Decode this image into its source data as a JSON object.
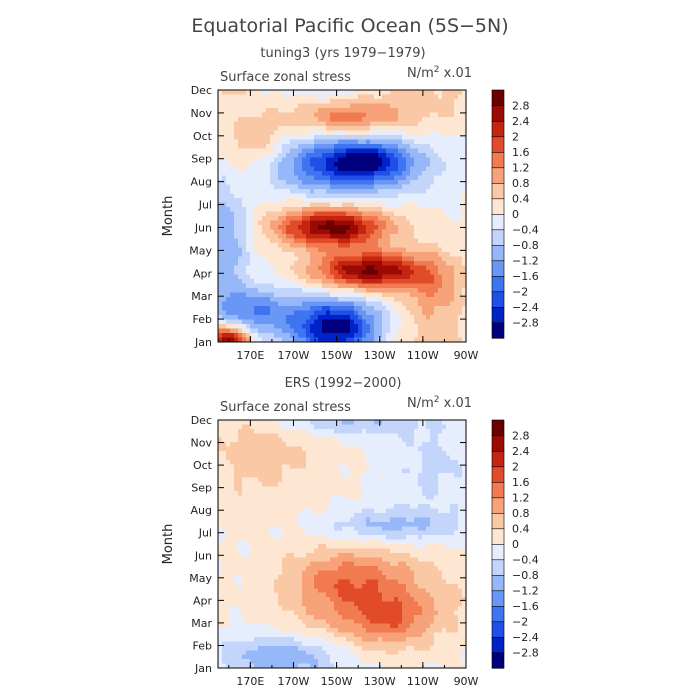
{
  "figure": {
    "title": "Equatorial Pacific Ocean (5S−5N)"
  },
  "colorbar": {
    "levels": [
      -2.8,
      -2.4,
      -2.0,
      -1.6,
      -1.2,
      -0.8,
      -0.4,
      0,
      0.4,
      0.8,
      1.2,
      1.6,
      2.0,
      2.4,
      2.8
    ],
    "tick_labels": [
      "−2.8",
      "−2.4",
      "−2",
      "−1.6",
      "−1.2",
      "−0.8",
      "−0.4",
      "0",
      "0.4",
      "0.8",
      "1.2",
      "1.6",
      "2",
      "2.4",
      "2.8"
    ],
    "colors": [
      "#00007f",
      "#0022c8",
      "#1f4fe6",
      "#3f74f0",
      "#6a97f5",
      "#96b8f8",
      "#c3d5fb",
      "#e6eefd",
      "#fde6d2",
      "#fbc8a5",
      "#f8a27a",
      "#f27a50",
      "#e14b28",
      "#c42410",
      "#9b0a04",
      "#6b0000"
    ]
  },
  "chart_data": [
    {
      "type": "heatmap",
      "subtitle": "tuning3 (yrs 1979−1979)",
      "variable_label": "Surface zonal stress",
      "units_label": "N/m² x.01",
      "units_main": "N/m",
      "units_sup": "2",
      "units_suffix": " x.01",
      "ylabel": "Month",
      "xticks": [
        "170E",
        "170W",
        "150W",
        "130W",
        "110W",
        "90W"
      ],
      "xtick_lon": [
        170,
        190,
        210,
        230,
        250,
        270
      ],
      "xlim": [
        155,
        270
      ],
      "months": [
        "Jan",
        "Feb",
        "Mar",
        "Apr",
        "May",
        "Jun",
        "Jul",
        "Aug",
        "Sep",
        "Oct",
        "Nov",
        "Dec"
      ],
      "features": [
        {
          "lon": 160,
          "mon": 0.0,
          "amp": 3.2,
          "slon": 7,
          "smon": 0.55
        },
        {
          "lon": 210,
          "mon": 0.6,
          "amp": -3.1,
          "slon": 14,
          "smon": 0.9
        },
        {
          "lon": 170,
          "mon": 1.3,
          "amp": -1.6,
          "slon": 16,
          "smon": 0.8
        },
        {
          "lon": 225,
          "mon": 3.1,
          "amp": 2.9,
          "slon": 18,
          "smon": 0.6
        },
        {
          "lon": 255,
          "mon": 2.2,
          "amp": 1.0,
          "slon": 10,
          "smon": 1.2
        },
        {
          "lon": 208,
          "mon": 5.0,
          "amp": 3.0,
          "slon": 18,
          "smon": 0.6
        },
        {
          "lon": 158,
          "mon": 4.5,
          "amp": -1.2,
          "slon": 8,
          "smon": 1.6
        },
        {
          "lon": 215,
          "mon": 7.7,
          "amp": -2.4,
          "slon": 24,
          "smon": 0.85
        },
        {
          "lon": 225,
          "mon": 8.0,
          "amp": -1.2,
          "slon": 12,
          "smon": 0.5
        },
        {
          "lon": 215,
          "mon": 9.8,
          "amp": 1.3,
          "slon": 18,
          "smon": 0.55
        },
        {
          "lon": 172,
          "mon": 8.7,
          "amp": 0.8,
          "slon": 10,
          "smon": 1.0
        },
        {
          "lon": 250,
          "mon": 11.0,
          "amp": 0.5,
          "slon": 25,
          "smon": 1.2
        }
      ]
    },
    {
      "type": "heatmap",
      "subtitle": "ERS (1992−2000)",
      "variable_label": "Surface zonal stress",
      "units_label": "N/m² x.01",
      "units_main": "N/m",
      "units_sup": "2",
      "units_suffix": " x.01",
      "ylabel": "Month",
      "xticks": [
        "170E",
        "170W",
        "150W",
        "130W",
        "110W",
        "90W"
      ],
      "xtick_lon": [
        170,
        190,
        210,
        230,
        250,
        270
      ],
      "xlim": [
        155,
        270
      ],
      "months": [
        "Jan",
        "Feb",
        "Mar",
        "Apr",
        "May",
        "Jun",
        "Jul",
        "Aug",
        "Sep",
        "Oct",
        "Nov",
        "Dec"
      ],
      "features": [
        {
          "lon": 225,
          "mon": 3.0,
          "amp": 1.3,
          "slon": 26,
          "smon": 1.6
        },
        {
          "lon": 212,
          "mon": 4.0,
          "amp": 0.6,
          "slon": 16,
          "smon": 0.8
        },
        {
          "lon": 236,
          "mon": 2.2,
          "amp": 0.7,
          "slon": 12,
          "smon": 0.7
        },
        {
          "lon": 185,
          "mon": 0.5,
          "amp": -1.3,
          "slon": 22,
          "smon": 0.7
        },
        {
          "lon": 235,
          "mon": 6.3,
          "amp": -1.0,
          "slon": 22,
          "smon": 0.55
        },
        {
          "lon": 215,
          "mon": 11.0,
          "amp": -0.9,
          "slon": 22,
          "smon": 0.5
        },
        {
          "lon": 175,
          "mon": 9.5,
          "amp": 0.6,
          "slon": 20,
          "smon": 1.6
        },
        {
          "lon": 255,
          "mon": 9.0,
          "amp": -0.5,
          "slon": 14,
          "smon": 1.6
        }
      ]
    }
  ]
}
